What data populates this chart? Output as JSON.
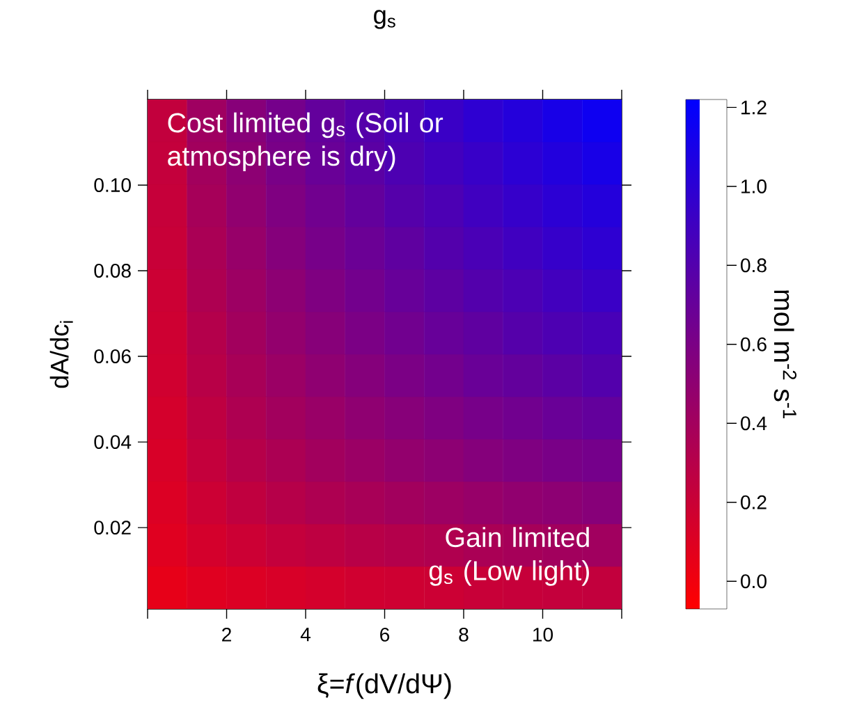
{
  "chart_data": {
    "type": "heatmap",
    "title": "g$_{s}$",
    "xlabel": "ξ=*f*(dV/dΨ)",
    "ylabel": "dA/dc$_{i}$",
    "clabel": "mol m$^{-2}$ s$^{-1}$",
    "annotations": [
      "Cost limited g$_{s}$ (Soil or atmosphere is dry)",
      "Gain limited g$_{s}$ (Low light)"
    ],
    "x": [
      0.5,
      1.5,
      2.5,
      3.5,
      4.5,
      5.5,
      6.5,
      7.5,
      8.5,
      9.5,
      10.5,
      11.5
    ],
    "xlim": [
      0,
      12
    ],
    "ylim": [
      0.001,
      0.12
    ],
    "xticks": [
      {
        "value": 0,
        "label": null
      },
      2,
      4,
      6,
      8,
      10,
      {
        "value": 12,
        "label": null
      }
    ],
    "yticks": [
      0.02,
      0.04,
      0.06,
      0.08,
      {
        "value": 0.1,
        "label": "0.10"
      }
    ],
    "clim": [
      -0.07,
      1.22
    ],
    "cticks": [
      {
        "value": 0,
        "label": "0.0"
      },
      {
        "value": 0.2,
        "label": "0.2"
      },
      {
        "value": 0.4,
        "label": "0.4"
      },
      {
        "value": 0.6,
        "label": "0.6"
      },
      {
        "value": 0.8,
        "label": "0.8"
      },
      {
        "value": 1.0,
        "label": "1.0"
      },
      {
        "value": 1.2,
        "label": "1.2"
      }
    ],
    "cells": [
      [
        0.24,
        0.42,
        0.54,
        0.63,
        0.72,
        0.79,
        0.86,
        0.93,
        0.99,
        1.04,
        1.1,
        1.15
      ],
      [
        0.23,
        0.4,
        0.51,
        0.61,
        0.69,
        0.76,
        0.83,
        0.89,
        0.94,
        1.0,
        1.05,
        1.1
      ],
      [
        0.22,
        0.38,
        0.49,
        0.58,
        0.65,
        0.72,
        0.79,
        0.84,
        0.9,
        0.95,
        1.0,
        1.04
      ],
      [
        0.21,
        0.36,
        0.46,
        0.55,
        0.62,
        0.68,
        0.74,
        0.8,
        0.85,
        0.9,
        0.95,
        0.99
      ],
      [
        0.19,
        0.34,
        0.43,
        0.51,
        0.58,
        0.64,
        0.7,
        0.75,
        0.8,
        0.84,
        0.89,
        0.93
      ],
      [
        0.18,
        0.31,
        0.4,
        0.48,
        0.54,
        0.6,
        0.65,
        0.7,
        0.74,
        0.79,
        0.83,
        0.86
      ],
      [
        0.17,
        0.29,
        0.37,
        0.44,
        0.5,
        0.55,
        0.6,
        0.64,
        0.69,
        0.72,
        0.76,
        0.8
      ],
      [
        0.15,
        0.26,
        0.34,
        0.4,
        0.45,
        0.5,
        0.54,
        0.58,
        0.62,
        0.65,
        0.69,
        0.72
      ],
      [
        0.13,
        0.23,
        0.3,
        0.35,
        0.4,
        0.44,
        0.48,
        0.51,
        0.55,
        0.58,
        0.61,
        0.63
      ],
      [
        0.11,
        0.19,
        0.25,
        0.3,
        0.34,
        0.37,
        0.4,
        0.43,
        0.46,
        0.49,
        0.51,
        0.54
      ],
      [
        0.09,
        0.15,
        0.19,
        0.23,
        0.26,
        0.29,
        0.31,
        0.33,
        0.36,
        0.38,
        0.4,
        0.41
      ],
      [
        0.05,
        0.09,
        0.11,
        0.13,
        0.15,
        0.17,
        0.18,
        0.19,
        0.21,
        0.22,
        0.23,
        0.24
      ]
    ]
  }
}
